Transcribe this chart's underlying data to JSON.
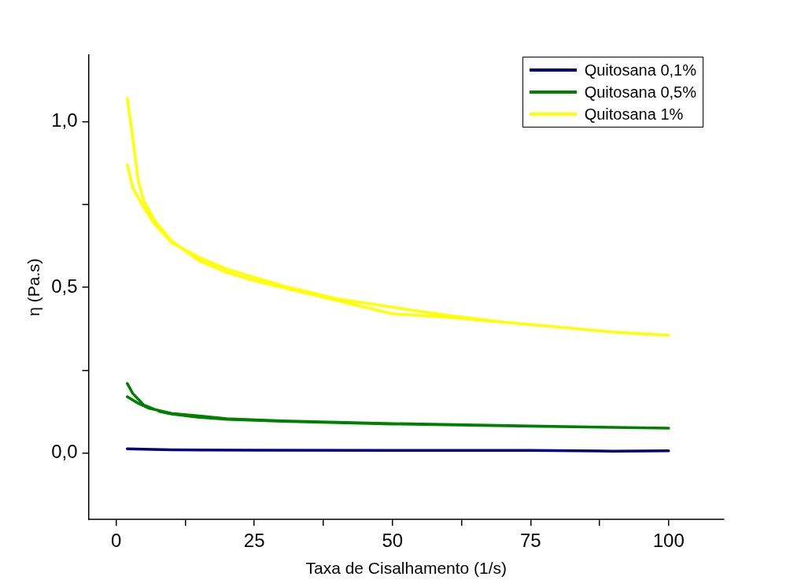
{
  "chart_data": {
    "type": "line",
    "xlabel": "Taxa de Cisalhamento (1/s)",
    "ylabel": "η (Pa.s)",
    "xlim": [
      -5,
      110
    ],
    "ylim": [
      -0.2,
      1.2
    ],
    "xticks": [
      0,
      {
        "value": 12.5,
        "label": null
      },
      25,
      {
        "value": 37.5,
        "label": null
      },
      50,
      {
        "value": 62.5,
        "label": null
      },
      75,
      {
        "value": 87.5,
        "label": null
      },
      100
    ],
    "yticks": [
      {
        "value": 0,
        "label": "0,0"
      },
      {
        "value": 0.25,
        "label": null
      },
      {
        "value": 0.5,
        "label": "0,5"
      },
      {
        "value": 0.75,
        "label": null
      },
      {
        "value": 1,
        "label": "1,0"
      }
    ],
    "grid": false,
    "legend": "top right",
    "marker": "none",
    "line_style": "solid",
    "series": [
      {
        "name": "Quitosana 0,1%",
        "color": "#000080",
        "x": [
          2,
          5,
          10,
          25,
          50,
          75,
          90,
          100
        ],
        "values": [
          0.013,
          0.012,
          0.01,
          0.009,
          0.008,
          0.008,
          0.006,
          0.007
        ]
      },
      {
        "name": "Quitosana 0,5%",
        "color": "#008000",
        "x": [
          2,
          3,
          5,
          8,
          10,
          15,
          20,
          30,
          50,
          75,
          100,
          75,
          50,
          30,
          20,
          10,
          6,
          4,
          2
        ],
        "values": [
          0.21,
          0.18,
          0.145,
          0.125,
          0.118,
          0.108,
          0.102,
          0.096,
          0.088,
          0.081,
          0.075,
          0.082,
          0.089,
          0.097,
          0.104,
          0.12,
          0.135,
          0.15,
          0.17
        ]
      },
      {
        "name": "Quitosana 1%",
        "color": "#ffff00",
        "x": [
          2,
          3,
          4,
          5,
          7,
          10,
          15,
          20,
          25,
          30,
          40,
          50,
          55,
          60,
          70,
          80,
          90,
          100,
          90,
          80,
          70,
          60,
          50,
          40,
          30,
          25,
          20,
          15,
          10,
          7,
          5,
          3,
          2
        ],
        "values": [
          1.07,
          0.95,
          0.82,
          0.76,
          0.7,
          0.64,
          0.58,
          0.545,
          0.52,
          0.5,
          0.46,
          0.42,
          0.415,
          0.41,
          0.395,
          0.38,
          0.365,
          0.355,
          0.365,
          0.38,
          0.395,
          0.415,
          0.44,
          0.465,
          0.505,
          0.53,
          0.555,
          0.59,
          0.635,
          0.69,
          0.74,
          0.8,
          0.87
        ]
      }
    ]
  }
}
